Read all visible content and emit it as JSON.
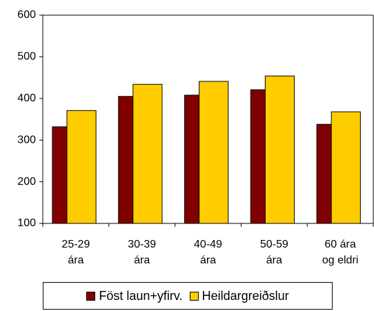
{
  "chart_data": {
    "type": "bar",
    "categories": [
      "25-29\nára",
      "30-39\nára",
      "40-49\nára",
      "50-59\nára",
      "60 ára\nog eldri"
    ],
    "series": [
      {
        "name": "Föst laun+yfirv.",
        "color": "#800000",
        "values": [
          332,
          405,
          408,
          421,
          338
        ]
      },
      {
        "name": "Heildargreiðslur",
        "color": "#ffcc00",
        "values": [
          371,
          434,
          441,
          454,
          368
        ]
      }
    ],
    "ylim": [
      100,
      600
    ],
    "yticks": [
      100,
      200,
      300,
      400,
      500,
      600
    ],
    "grid": false
  }
}
